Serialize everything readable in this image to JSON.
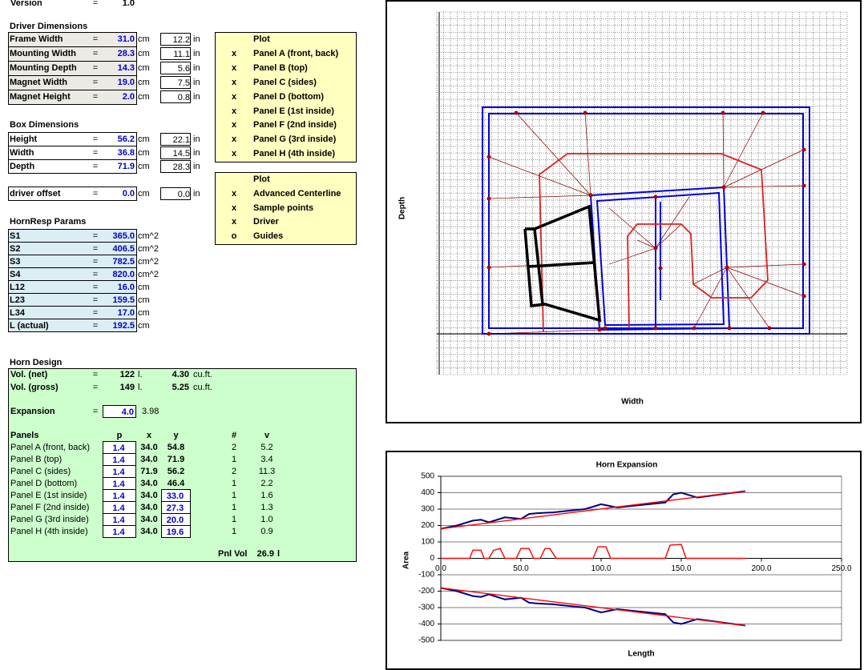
{
  "version": {
    "label": "Version",
    "eq": "=",
    "value": "1.0"
  },
  "driver_dimensions": {
    "title": "Driver Dimensions",
    "rows": [
      [
        "Frame Width",
        "=",
        "31.0",
        "cm",
        "12.2",
        "in"
      ],
      [
        "Mounting Width",
        "=",
        "28.3",
        "cm",
        "11.1",
        "in"
      ],
      [
        "Mounting Depth",
        "=",
        "14.3",
        "cm",
        "5.6",
        "in"
      ],
      [
        "Magnet Width",
        "=",
        "19.0",
        "cm",
        "7.5",
        "in"
      ],
      [
        "Magnet Height",
        "=",
        "2.0",
        "cm",
        "0.8",
        "in"
      ]
    ]
  },
  "box_dimensions": {
    "title": "Box Dimensions",
    "rows": [
      [
        "Height",
        "=",
        "56.2",
        "cm",
        "22.1",
        "in"
      ],
      [
        "Width",
        "=",
        "36.8",
        "cm",
        "14.5",
        "in"
      ],
      [
        "Depth",
        "=",
        "71.9",
        "cm",
        "28.3",
        "in"
      ]
    ]
  },
  "driver_offset": [
    "driver offset",
    "=",
    "0.0",
    "cm",
    "0.0",
    "in"
  ],
  "hornresp_params": {
    "title": "HornResp Params",
    "rows": [
      [
        "S1",
        "=",
        "365.0",
        "cm^2"
      ],
      [
        "S2",
        "=",
        "406.5",
        "cm^2"
      ],
      [
        "S3",
        "=",
        "782.5",
        "cm^2"
      ],
      [
        "S4",
        "=",
        "820.0",
        "cm^2"
      ],
      [
        "L12",
        "=",
        "16.0",
        "cm"
      ],
      [
        "L23",
        "=",
        "159.5",
        "cm"
      ],
      [
        "L34",
        "=",
        "17.0",
        "cm"
      ],
      [
        "L (actual)",
        "=",
        "192.5",
        "cm"
      ]
    ]
  },
  "plot_panels": {
    "header": "Plot",
    "rows": [
      [
        "x",
        "Panel A (front, back)"
      ],
      [
        "x",
        "Panel B (top)"
      ],
      [
        "x",
        "Panel C (sides)"
      ],
      [
        "x",
        "Panel D (bottom)"
      ],
      [
        "x",
        "Panel E (1st inside)"
      ],
      [
        "x",
        "Panel F (2nd inside)"
      ],
      [
        "x",
        "Panel G (3rd inside)"
      ],
      [
        "x",
        "Panel H (4th inside)"
      ]
    ]
  },
  "plot_options": {
    "header": "Plot",
    "rows": [
      [
        "x",
        "Advanced Centerline"
      ],
      [
        "x",
        "Sample points"
      ],
      [
        "x",
        "Driver"
      ],
      [
        "o",
        "Guides"
      ]
    ]
  },
  "horn_design": {
    "title": "Horn Design",
    "volumes": [
      [
        "Vol. (net)",
        "=",
        "122",
        "l.",
        "4.30",
        "cu.ft."
      ],
      [
        "Vol. (gross)",
        "=",
        "149",
        "l.",
        "5.25",
        "cu.ft."
      ]
    ],
    "expansion": [
      "Expansion",
      "=",
      "4.0",
      "3.98"
    ],
    "panels_header": [
      "Panels",
      "p",
      "x",
      "y",
      "#",
      "v"
    ],
    "panels": [
      [
        "Panel A (front, back)",
        "1.4",
        "34.0",
        "54.8",
        "2",
        "5.2"
      ],
      [
        "Panel B (top)",
        "1.4",
        "34.0",
        "71.9",
        "1",
        "3.4"
      ],
      [
        "Panel C (sides)",
        "1.4",
        "71.9",
        "56.2",
        "2",
        "11.3"
      ],
      [
        "Panel D (bottom)",
        "1.4",
        "34.0",
        "46.4",
        "1",
        "2.2"
      ],
      [
        "Panel E (1st inside)",
        "1.4",
        "34.0",
        "33.0",
        "1",
        "1.6"
      ],
      [
        "Panel F (2nd inside)",
        "1.4",
        "34.0",
        "27.3",
        "1",
        "1.3"
      ],
      [
        "Panel G (3rd inside)",
        "1.4",
        "34.0",
        "20.0",
        "1",
        "1.0"
      ],
      [
        "Panel H (4th inside)",
        "1.4",
        "34.0",
        "19.6",
        "1",
        "0.9"
      ]
    ],
    "panel_volume": {
      "label": "Pnl Vol",
      "value": "26.9",
      "unit": "l"
    }
  },
  "layout_plot": {
    "xlabel": "Width",
    "ylabel": "Depth"
  },
  "chart_data": {
    "type": "line",
    "title": "Horn Expansion",
    "xlabel": "Length",
    "ylabel": "Area",
    "xlim": [
      0,
      250
    ],
    "xticks": [
      {
        "value": 0,
        "label": "0.0"
      },
      {
        "value": 50,
        "label": "50.0"
      },
      {
        "value": 100,
        "label": "100.0"
      },
      {
        "value": 150,
        "label": "150.0"
      },
      {
        "value": 200,
        "label": "200.0"
      },
      {
        "value": 250,
        "label": "250.0"
      }
    ],
    "ylim": [
      -500,
      500
    ],
    "yticks": [
      -500,
      -400,
      -300,
      -200,
      -100,
      0,
      100,
      200,
      300,
      400,
      500
    ],
    "grid": true,
    "series": [
      {
        "color": "#000080",
        "x": [
          0,
          10,
          20,
          25,
          30,
          40,
          50,
          55,
          60,
          70,
          80,
          90,
          100,
          110,
          120,
          140,
          145,
          150,
          160,
          190
        ],
        "values": [
          180,
          200,
          230,
          235,
          220,
          250,
          240,
          270,
          275,
          280,
          290,
          300,
          330,
          310,
          320,
          340,
          390,
          400,
          370,
          410
        ]
      },
      {
        "color": "#ff0000",
        "x": [
          0,
          190
        ],
        "values": [
          180,
          410
        ]
      },
      {
        "color": "#ff0000",
        "x": [
          0,
          18,
          20,
          25,
          27,
          30,
          33,
          37,
          40,
          47,
          50,
          55,
          58,
          62,
          65,
          68,
          72,
          95,
          98,
          103,
          106,
          140,
          143,
          150,
          153,
          190
        ],
        "values": [
          0,
          0,
          50,
          50,
          0,
          0,
          50,
          60,
          0,
          0,
          60,
          60,
          0,
          0,
          60,
          60,
          0,
          0,
          70,
          70,
          0,
          0,
          80,
          85,
          0,
          0
        ]
      },
      {
        "color": "#000080",
        "x": [
          0,
          10,
          20,
          25,
          30,
          40,
          50,
          55,
          60,
          70,
          80,
          90,
          100,
          110,
          120,
          140,
          145,
          150,
          160,
          190
        ],
        "values": [
          -180,
          -200,
          -230,
          -235,
          -220,
          -250,
          -240,
          -270,
          -275,
          -280,
          -290,
          -300,
          -330,
          -310,
          -320,
          -340,
          -390,
          -400,
          -370,
          -410
        ]
      },
      {
        "color": "#ff0000",
        "x": [
          0,
          190
        ],
        "values": [
          -180,
          -410
        ]
      }
    ]
  }
}
